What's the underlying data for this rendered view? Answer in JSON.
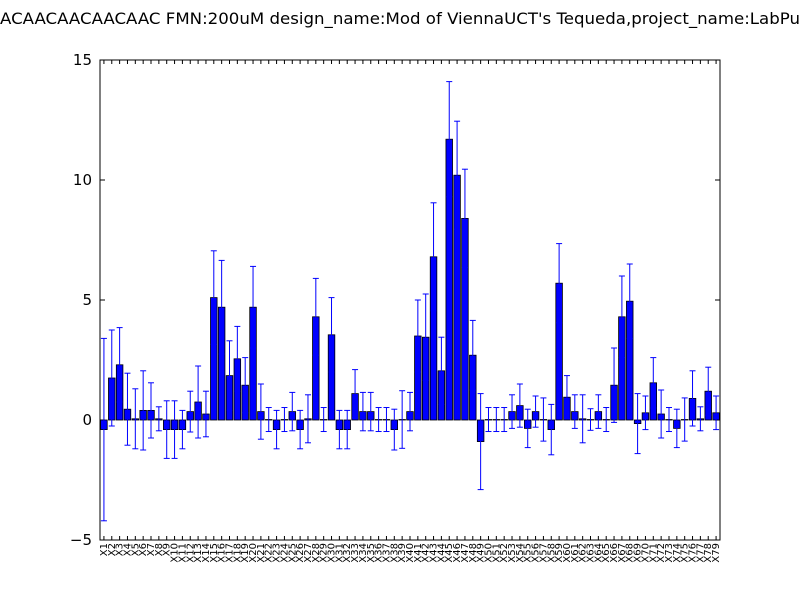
{
  "chart_data": {
    "type": "bar",
    "title": "ACAACAACAACAAC  FMN:200uM  design_name:Mod of ViennaUCT's Tequeda,project_name:LabPu",
    "categories": [
      "X1",
      "X2",
      "X3",
      "X4",
      "X5",
      "X6",
      "X7",
      "X8",
      "X9",
      "X10",
      "X11",
      "X12",
      "X13",
      "X14",
      "X15",
      "X16",
      "X17",
      "X18",
      "X19",
      "X20",
      "X21",
      "X22",
      "X23",
      "X24",
      "X25",
      "X26",
      "X27",
      "X28",
      "X29",
      "X30",
      "X31",
      "X32",
      "X33",
      "X34",
      "X35",
      "X36",
      "X37",
      "X38",
      "X39",
      "X40",
      "X41",
      "X42",
      "X43",
      "X44",
      "X45",
      "X46",
      "X47",
      "X48",
      "X49",
      "X50",
      "X51",
      "X52",
      "X53",
      "X54",
      "X55",
      "X56",
      "X57",
      "X58",
      "X59",
      "X60",
      "X61",
      "X62",
      "X63",
      "X64",
      "X65",
      "X66",
      "X67",
      "X68",
      "X69",
      "X70",
      "X71",
      "X72",
      "X73",
      "X74",
      "X75",
      "X76",
      "X77",
      "X78",
      "X79"
    ],
    "values": [
      -0.4,
      1.75,
      2.3,
      0.45,
      0.05,
      0.4,
      0.4,
      0.05,
      -0.4,
      -0.4,
      -0.4,
      0.35,
      0.75,
      0.25,
      5.1,
      4.7,
      1.85,
      2.55,
      1.45,
      4.7,
      0.35,
      0.02,
      -0.4,
      0.02,
      0.35,
      -0.4,
      0.05,
      4.3,
      0.02,
      3.55,
      -0.4,
      -0.4,
      1.1,
      0.35,
      0.35,
      0.02,
      0.02,
      -0.4,
      0.02,
      0.35,
      3.5,
      3.45,
      6.8,
      2.05,
      11.7,
      10.2,
      8.4,
      2.7,
      -0.9,
      0.02,
      0.02,
      0.02,
      0.35,
      0.6,
      -0.35,
      0.35,
      0.02,
      -0.4,
      5.7,
      0.95,
      0.35,
      0.05,
      0.02,
      0.35,
      0.02,
      1.45,
      4.3,
      4.95,
      -0.15,
      0.3,
      1.55,
      0.25,
      0.02,
      -0.35,
      0.02,
      0.9,
      0.05,
      1.2,
      0.3
    ],
    "errors": [
      3.8,
      2.0,
      1.55,
      1.5,
      1.25,
      1.65,
      1.15,
      0.5,
      1.2,
      1.2,
      0.8,
      0.85,
      1.5,
      0.95,
      1.95,
      1.95,
      1.45,
      1.35,
      1.15,
      1.7,
      1.15,
      0.5,
      0.8,
      0.5,
      0.8,
      0.8,
      1.0,
      1.6,
      0.5,
      1.55,
      0.8,
      0.8,
      1.0,
      0.8,
      0.8,
      0.5,
      0.5,
      0.85,
      1.2,
      0.8,
      1.5,
      1.8,
      2.25,
      1.4,
      2.4,
      2.25,
      2.05,
      1.45,
      2.0,
      0.5,
      0.5,
      0.5,
      0.7,
      0.9,
      0.8,
      0.65,
      0.9,
      1.05,
      1.65,
      0.9,
      0.7,
      1.0,
      0.45,
      0.7,
      0.5,
      1.55,
      1.7,
      1.55,
      1.25,
      0.7,
      1.05,
      1.0,
      0.5,
      0.8,
      0.9,
      1.15,
      0.5,
      1.0,
      0.7
    ],
    "color": "#0000ff",
    "ylim": [
      -5,
      15
    ],
    "yticks": [
      {
        "value": -5,
        "label": "−5"
      },
      0,
      5,
      10,
      15
    ]
  }
}
